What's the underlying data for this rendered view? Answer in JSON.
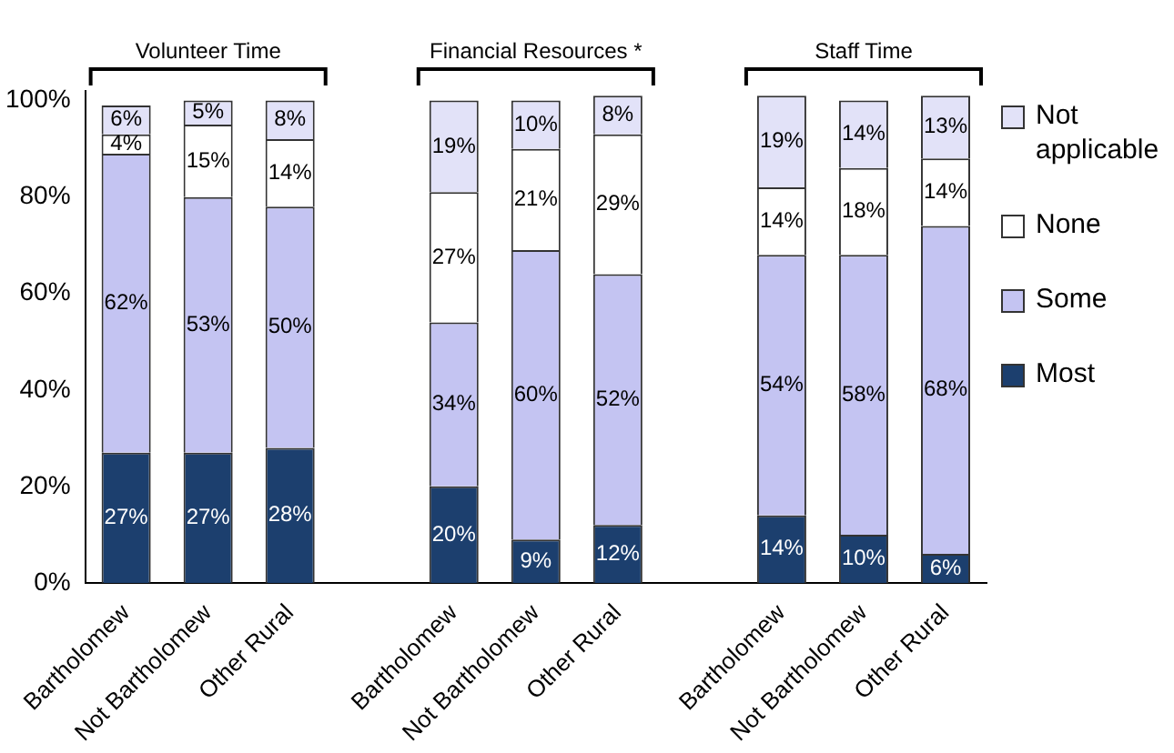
{
  "chart_data": {
    "type": "bar",
    "stacked": true,
    "categories": [
      "Bartholomew",
      "Not Bartholomew",
      "Other Rural",
      null,
      "Bartholomew",
      "Not Bartholomew",
      "Other Rural",
      null,
      "Bartholomew",
      "Not Bartholomew",
      "Other Rural"
    ],
    "series": [
      {
        "name": "Most",
        "color": "#1c3f6e",
        "values": [
          27,
          27,
          28,
          null,
          20,
          9,
          12,
          null,
          14,
          10,
          6
        ],
        "value_labels": [
          "27%",
          "27%",
          "28%",
          null,
          "20%",
          "9%",
          "12%",
          null,
          "14%",
          "10%",
          "6%"
        ]
      },
      {
        "name": "Some",
        "color": "#c4c4f2",
        "values": [
          62,
          53,
          50,
          null,
          34,
          60,
          52,
          null,
          54,
          58,
          68
        ],
        "value_labels": [
          "62%",
          "53%",
          "50%",
          null,
          "34%",
          "60%",
          "52%",
          null,
          "54%",
          "58%",
          "68%"
        ]
      },
      {
        "name": "None",
        "color": "#ffffff",
        "values": [
          4,
          15,
          14,
          null,
          27,
          21,
          29,
          null,
          14,
          18,
          14
        ],
        "value_labels": [
          "4%",
          "15%",
          "14%",
          null,
          "27%",
          "21%",
          "29%",
          null,
          "14%",
          "18%",
          "14%"
        ]
      },
      {
        "name": "Not applicable",
        "color": "#e2e2f8",
        "values": [
          6,
          5,
          8,
          null,
          19,
          10,
          8,
          null,
          19,
          14,
          13
        ],
        "value_labels": [
          "6%",
          "5%",
          "8%",
          null,
          "19%",
          "10%",
          "8%",
          null,
          "19%",
          "14%",
          "13%"
        ]
      }
    ],
    "ylim": [
      0,
      102
    ],
    "yticks": [
      {
        "value": 0,
        "label": "0%"
      },
      {
        "value": 20,
        "label": "20%"
      },
      {
        "value": 40,
        "label": "40%"
      },
      {
        "value": 60,
        "label": "60%"
      },
      {
        "value": 80,
        "label": "80%"
      },
      {
        "value": 100,
        "label": "100%"
      }
    ],
    "annotations": [
      "Volunteer Time",
      "Financial Resources *",
      "Staff Time"
    ],
    "legend": "right",
    "grid": false
  }
}
